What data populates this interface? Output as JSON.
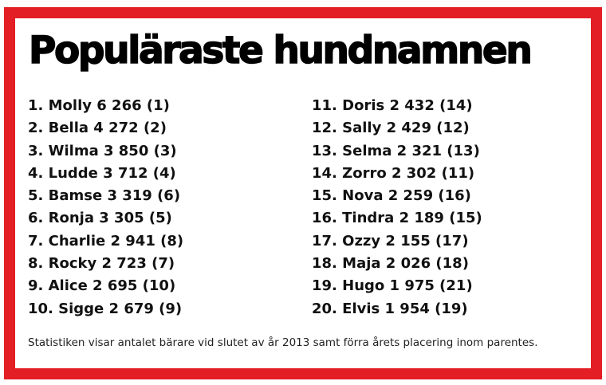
{
  "title": "Populäraste hundnamnen",
  "accent_color": "#e31e24",
  "left_column": [
    "1. Molly 6 266 (1)",
    "2. Bella 4 272 (2)",
    "3. Wilma 3 850 (3)",
    "4. Ludde 3 712 (4)",
    "5. Bamse 3 319 (6)",
    "6. Ronja 3 305 (5)",
    "7. Charlie 2 941 (8)",
    "8. Rocky 2 723 (7)",
    "9. Alice 2 695 (10)",
    "10. Sigge 2 679 (9)"
  ],
  "right_column": [
    "11. Doris 2 432 (14)",
    "12. Sally 2 429 (12)",
    "13. Selma 2 321 (13)",
    "14. Zorro 2 302 (11)",
    "15. Nova 2 259 (16)",
    "16. Tindra 2 189 (15)",
    "17. Ozzy 2 155 (17)",
    "18. Maja 2 026 (18)",
    "19. Hugo 1 975 (21)",
    "20. Elvis 1 954 (19)"
  ],
  "footer": "Statistiken visar antalet bärare vid slutet av år 2013 samt förra årets placering inom parentes."
}
